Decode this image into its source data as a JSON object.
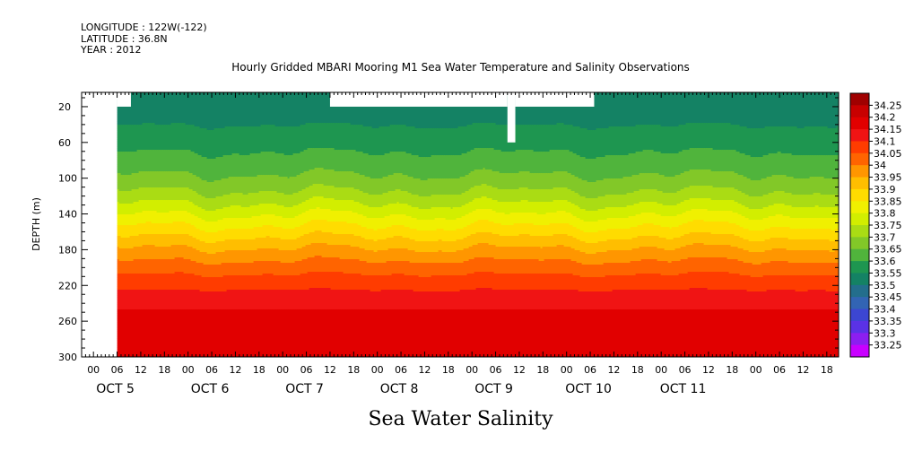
{
  "meta": {
    "longitude": "LONGITUDE : 122W(-122)",
    "latitude": "LATITUDE : 36.8N",
    "year": "YEAR : 2012"
  },
  "chart_data": {
    "type": "heatmap",
    "title": "Hourly Gridded MBARI Mooring M1 Sea Water Temperature and Salinity Observations",
    "variable_title": "Sea Water Salinity",
    "ylabel": "DEPTH (m)",
    "y_ticks": [
      20,
      60,
      100,
      140,
      180,
      220,
      260,
      300
    ],
    "y_range": [
      4,
      300
    ],
    "x_hour_labels": [
      "00",
      "06",
      "12",
      "18",
      "00",
      "06",
      "12",
      "18",
      "00",
      "06",
      "12",
      "18",
      "00",
      "06",
      "12",
      "18",
      "00",
      "06",
      "12",
      "18",
      "00",
      "06",
      "12",
      "18",
      "00",
      "06",
      "12",
      "18",
      "00",
      "06",
      "12",
      "18"
    ],
    "x_day_labels": [
      {
        "label": "OCT  5",
        "day_index": 0
      },
      {
        "label": "OCT  6",
        "day_index": 1
      },
      {
        "label": "OCT  7",
        "day_index": 2
      },
      {
        "label": "OCT  8",
        "day_index": 3
      },
      {
        "label": "OCT  9",
        "day_index": 4
      },
      {
        "label": "OCT 10",
        "day_index": 5
      },
      {
        "label": "OCT 11",
        "day_index": 6
      }
    ],
    "x_range_hours": [
      -3,
      189
    ],
    "data_start_hour": 6,
    "colorbar_levels": [
      "34.25",
      "34.2",
      "34.15",
      "34.1",
      "34.05",
      "34",
      "33.95",
      "33.9",
      "33.85",
      "33.8",
      "33.75",
      "33.7",
      "33.65",
      "33.6",
      "33.55",
      "33.5",
      "33.45",
      "33.4",
      "33.35",
      "33.3",
      "33.25"
    ],
    "colorbar_colors": [
      "#a00000",
      "#c80000",
      "#e10000",
      "#f01414",
      "#ff3c00",
      "#ff6400",
      "#ff9600",
      "#ffbe00",
      "#ffdc00",
      "#f0f000",
      "#d2ee00",
      "#aadc14",
      "#82c828",
      "#50b43c",
      "#1e9650",
      "#148264",
      "#236e8c",
      "#3264b4",
      "#3c46d2",
      "#5a32e6",
      "#8c1ef0",
      "#c800ff"
    ],
    "contour_profile": [
      {
        "depth": 20,
        "value": 33.52
      },
      {
        "depth": 40,
        "value": 33.55
      },
      {
        "depth": 60,
        "value": 33.58
      },
      {
        "depth": 80,
        "value": 33.62
      },
      {
        "depth": 100,
        "value": 33.66
      },
      {
        "depth": 120,
        "value": 33.72
      },
      {
        "depth": 140,
        "value": 33.8
      },
      {
        "depth": 160,
        "value": 33.88
      },
      {
        "depth": 180,
        "value": 33.96
      },
      {
        "depth": 200,
        "value": 34.03
      },
      {
        "depth": 220,
        "value": 34.09
      },
      {
        "depth": 240,
        "value": 34.14
      },
      {
        "depth": 260,
        "value": 34.17
      },
      {
        "depth": 300,
        "value": 34.15
      }
    ]
  }
}
